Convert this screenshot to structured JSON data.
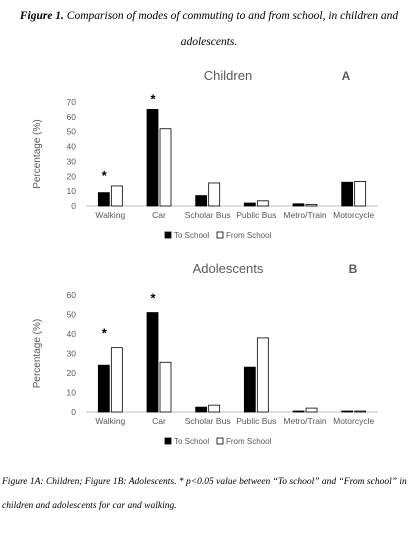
{
  "figure": {
    "title_label": "Figure 1.",
    "title_text": "Comparison of modes of commuting to and from school, in children and adolescents.",
    "caption": "Figure 1A: Children; Figure 1B: Adolescents. * p<0.05 value between “To school” and “From school” in children and adolescents for car and walking."
  },
  "colors": {
    "to_school": "#000000",
    "from_school": "#ffffff",
    "axis": "#bfbfbf",
    "text": "#595959"
  },
  "chart_data": [
    {
      "type": "bar",
      "title": "Children",
      "panel_letter": "A",
      "ylabel": "Percentage (%)",
      "ylim": [
        0,
        70
      ],
      "yticks": [
        0,
        10,
        20,
        30,
        40,
        50,
        60,
        70
      ],
      "categories": [
        "Walking",
        "Car",
        "Scholar Bus",
        "Public Bus",
        "Metro/Train",
        "Motorcycle"
      ],
      "series": [
        {
          "name": "To School",
          "values": [
            9,
            65,
            7,
            2,
            1.5,
            16
          ]
        },
        {
          "name": "From School",
          "values": [
            13.5,
            52,
            15.5,
            3.5,
            1,
            16.5
          ]
        }
      ],
      "significance_marker": "*",
      "significant_categories": [
        "Walking",
        "Car"
      ],
      "legend": "bottom-center",
      "grid": false
    },
    {
      "type": "bar",
      "title": "Adolescents",
      "panel_letter": "B",
      "ylabel": "Percentage (%)",
      "ylim": [
        0,
        60
      ],
      "yticks": [
        0,
        10,
        20,
        30,
        40,
        50,
        60
      ],
      "categories": [
        "Walking",
        "Car",
        "Scholar Bus",
        "Public Bus",
        "Metro/Train",
        "Motorcycle"
      ],
      "series": [
        {
          "name": "To School",
          "values": [
            24,
            51,
            2.5,
            23,
            0.5,
            0.5
          ]
        },
        {
          "name": "From School",
          "values": [
            33,
            25.5,
            3.5,
            38,
            2,
            0.5
          ]
        }
      ],
      "significance_marker": "*",
      "significant_categories": [
        "Walking",
        "Car"
      ],
      "legend": "bottom-center",
      "grid": false
    }
  ]
}
